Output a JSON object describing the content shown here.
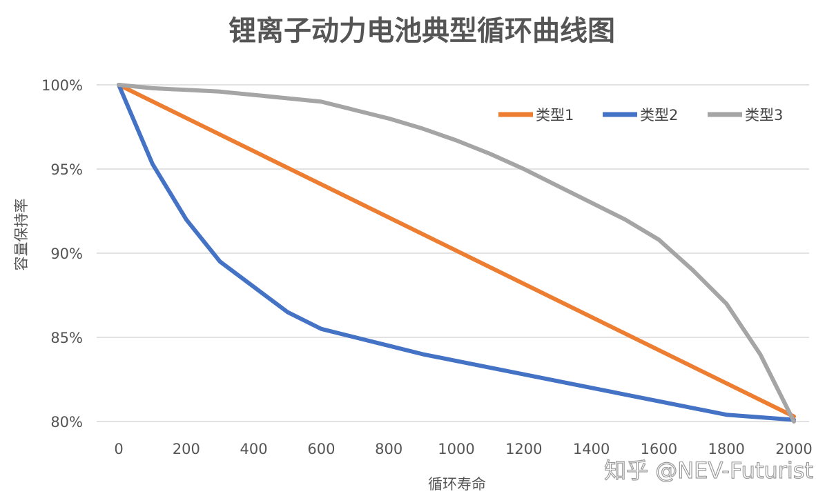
{
  "chart_data": {
    "type": "line",
    "title": "锂离子动力电池典型循环曲线图",
    "xlabel": "循环寿命",
    "ylabel": "容量保持率",
    "xlim": [
      0,
      2000
    ],
    "ylim": [
      80,
      100
    ],
    "x_ticks": [
      "0",
      "200",
      "400",
      "600",
      "800",
      "1000",
      "1200",
      "1400",
      "1600",
      "1800",
      "2000"
    ],
    "y_ticks": [
      "80%",
      "85%",
      "90%",
      "95%",
      "100%"
    ],
    "grid": "horizontal",
    "legend_position": "top-right",
    "series": [
      {
        "name": "类型1",
        "color": "#ED7D31",
        "x": [
          0,
          2000
        ],
        "y": [
          100,
          80.3
        ]
      },
      {
        "name": "类型2",
        "color": "#4472C4",
        "x": [
          0,
          100,
          200,
          300,
          400,
          500,
          600,
          700,
          800,
          900,
          1000,
          1200,
          1400,
          1600,
          1800,
          2000
        ],
        "y": [
          100,
          95.3,
          92,
          89.5,
          88,
          86.5,
          85.5,
          85.0,
          84.5,
          84.0,
          83.6,
          82.8,
          82.0,
          81.2,
          80.4,
          80.1
        ]
      },
      {
        "name": "类型3",
        "color": "#A5A5A5",
        "x": [
          0,
          100,
          200,
          300,
          400,
          500,
          600,
          700,
          800,
          900,
          1000,
          1100,
          1200,
          1300,
          1400,
          1500,
          1600,
          1700,
          1800,
          1900,
          2000
        ],
        "y": [
          100,
          99.8,
          99.7,
          99.6,
          99.4,
          99.2,
          99.0,
          98.5,
          98.0,
          97.4,
          96.7,
          95.9,
          95.0,
          94.0,
          93.0,
          92.0,
          90.8,
          89.0,
          87.0,
          84.0,
          80.0
        ]
      }
    ]
  },
  "watermark": "知乎 @NEV-Futurist"
}
